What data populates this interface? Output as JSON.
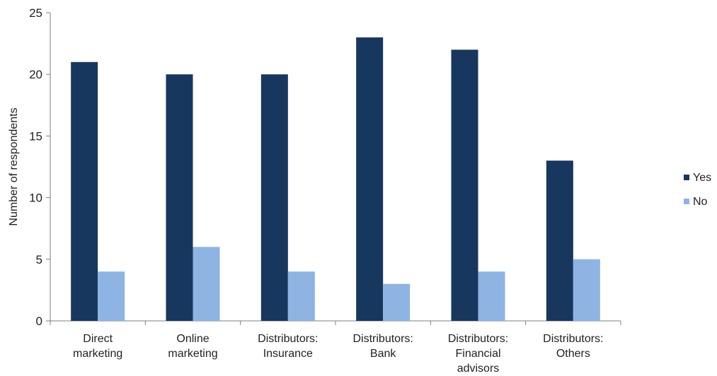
{
  "chart_data": {
    "type": "bar",
    "categories": [
      [
        "Direct",
        "marketing"
      ],
      [
        "Online",
        "marketing"
      ],
      [
        "Distributors:",
        "Insurance"
      ],
      [
        "Distributors:",
        "Bank"
      ],
      [
        "Distributors:",
        "Financial",
        "advisors"
      ],
      [
        "Distributors:",
        "Others"
      ]
    ],
    "series": [
      {
        "name": "Yes",
        "color": "#17375e",
        "values": [
          21,
          20,
          20,
          23,
          22,
          13
        ]
      },
      {
        "name": "No",
        "color": "#8db4e2",
        "values": [
          4,
          6,
          4,
          3,
          4,
          5
        ]
      }
    ],
    "ylabel": "Number of respondents",
    "xlabel": "",
    "ylim": [
      0,
      25
    ],
    "yticks": [
      0,
      5,
      10,
      15,
      20,
      25
    ],
    "grid": false,
    "legend_position": "right"
  }
}
